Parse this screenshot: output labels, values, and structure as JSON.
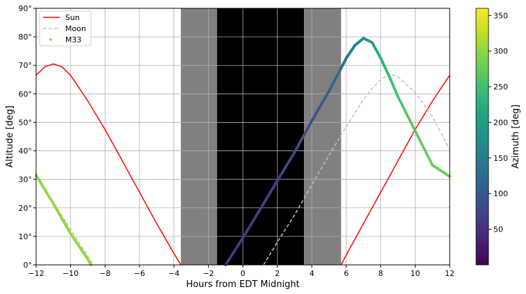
{
  "chart_data": {
    "type": "line",
    "xlabel": "Hours from EDT Midnight",
    "ylabel": "Altitude [deg]",
    "xlim": [
      -12,
      12
    ],
    "ylim": [
      0,
      90
    ],
    "grid": true,
    "legend_position": "top-left",
    "x_ticks": [
      -12,
      -10,
      -8,
      -6,
      -4,
      -2,
      0,
      2,
      4,
      6,
      8,
      10,
      12
    ],
    "x_tick_labels": [
      "−12",
      "−10",
      "−8",
      "−6",
      "−4",
      "−2",
      "0",
      "2",
      "4",
      "6",
      "8",
      "10",
      "12"
    ],
    "y_ticks": [
      0,
      10,
      20,
      30,
      40,
      50,
      60,
      70,
      80,
      90
    ],
    "y_tick_labels": [
      "0°",
      "10°",
      "20°",
      "30°",
      "40°",
      "50°",
      "60°",
      "70°",
      "80°",
      "90°"
    ],
    "twilight_bands": [
      {
        "x_start": -3.6,
        "x_end": -1.5,
        "color": "#808080"
      },
      {
        "x_start": -1.5,
        "x_end": 3.55,
        "color": "#000000"
      },
      {
        "x_start": 3.55,
        "x_end": 5.7,
        "color": "#808080"
      }
    ],
    "series": [
      {
        "name": "Sun",
        "style": "solid",
        "color": "#ff0000",
        "x": [
          -12,
          -11.5,
          -11,
          -10.5,
          -10,
          -9,
          -8,
          -7,
          -6,
          -5,
          -4,
          -3.6,
          5.7,
          6,
          7,
          8,
          9,
          10,
          11,
          12
        ],
        "y": [
          66.5,
          69.5,
          70.5,
          69.5,
          66.5,
          57.5,
          47.5,
          36.5,
          25.5,
          14.5,
          4,
          0,
          0,
          3.5,
          14.5,
          25.5,
          36.5,
          47.5,
          57.5,
          66.5
        ]
      },
      {
        "name": "Moon",
        "style": "dashed",
        "color": "#bfbfbf",
        "x": [
          -12,
          -11,
          -10,
          -9,
          -8.7,
          1.2,
          2,
          3,
          4,
          5,
          6,
          7,
          7.5,
          8,
          8.5,
          9,
          10,
          11,
          12
        ],
        "y": [
          31,
          22,
          12.5,
          3,
          0,
          0,
          8,
          17.5,
          28,
          38.5,
          48.5,
          58,
          62,
          65,
          67,
          66,
          60.5,
          52,
          40.5
        ]
      },
      {
        "name": "M33",
        "style": "points",
        "color": "#7ad151",
        "x": [
          -12,
          -11,
          -10,
          -9,
          -8.8,
          -1.0,
          0,
          1,
          2,
          3,
          4,
          5,
          5.7,
          6,
          6.5,
          7,
          7.5,
          8,
          8.5,
          9,
          10,
          11,
          12
        ],
        "y": [
          31.5,
          21.5,
          11,
          2,
          0,
          0,
          9.5,
          19.5,
          29.5,
          39.5,
          50.5,
          61,
          69,
          72.5,
          77,
          79.5,
          78,
          72.5,
          66,
          59,
          47,
          35,
          31
        ],
        "azimuth": [
          300,
          302,
          303,
          304,
          305,
          60,
          62,
          66,
          72,
          80,
          92,
          110,
          130,
          140,
          160,
          180,
          205,
          228,
          245,
          258,
          270,
          276,
          280
        ]
      }
    ],
    "colorbar": {
      "label": "Azimuth [deg]",
      "range": [
        0,
        360
      ],
      "ticks": [
        50,
        100,
        150,
        200,
        250,
        300,
        350
      ],
      "tick_labels": [
        "50",
        "100",
        "150",
        "200",
        "250",
        "300",
        "350"
      ],
      "colormap": "viridis"
    }
  }
}
